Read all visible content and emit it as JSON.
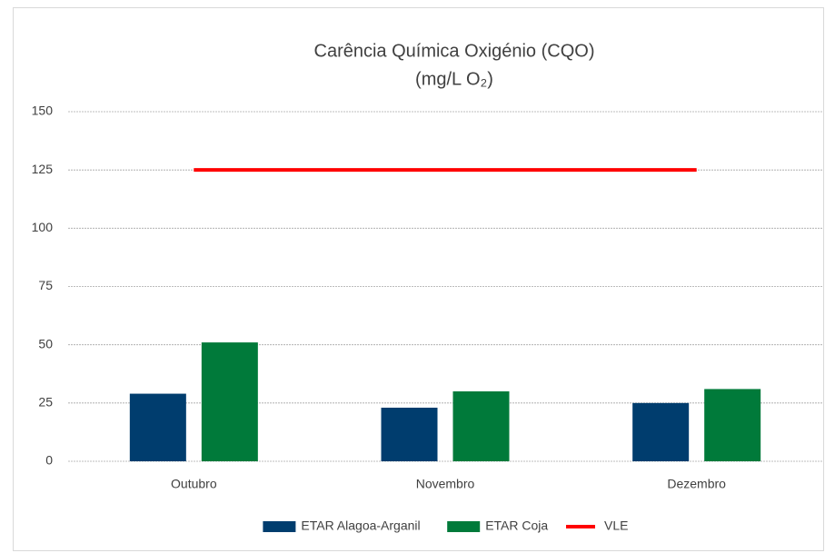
{
  "chart_data": {
    "type": "bar",
    "title": "Carência Química Oxigénio (CQO)",
    "subtitle": "(mg/L O₂)",
    "categories": [
      "Outubro",
      "Novembro",
      "Dezembro"
    ],
    "series": [
      {
        "name": "ETAR Alagoa-Arganil",
        "color": "#003d6e",
        "values": [
          29,
          23,
          25
        ]
      },
      {
        "name": "ETAR Coja",
        "color": "#007a3a",
        "values": [
          51,
          30,
          31
        ]
      },
      {
        "name": "VLE",
        "color": "#ff0000",
        "type": "line",
        "values": [
          125,
          125,
          125
        ]
      }
    ],
    "ylim": [
      0,
      150
    ],
    "yticks": [
      0,
      25,
      50,
      75,
      100,
      125,
      150
    ],
    "grid": true,
    "legend": "bottom"
  }
}
